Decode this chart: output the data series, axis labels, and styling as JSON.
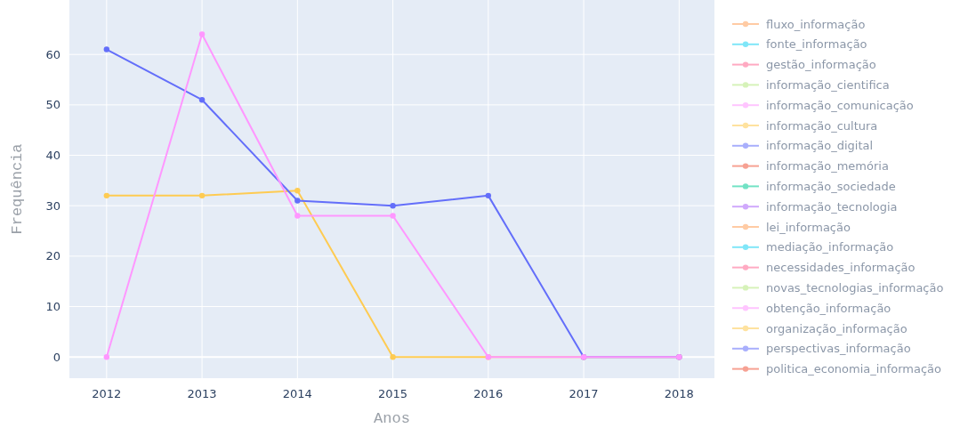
{
  "chart_data": {
    "type": "line",
    "xlabel": "Anos",
    "ylabel": "Frequência",
    "x": [
      2012,
      2013,
      2014,
      2015,
      2016,
      2017,
      2018
    ],
    "xlim": [
      2011.61,
      2018.37
    ],
    "xticks": [
      2012,
      2013,
      2014,
      2015,
      2016,
      2017,
      2018
    ],
    "ylim": [
      -4.2,
      70.8
    ],
    "yticks": [
      0,
      10,
      20,
      30,
      40,
      50,
      60
    ],
    "grid": true,
    "legend": "right",
    "marker": "circle",
    "line_style": "solid",
    "series": [
      {
        "name": "fluxo_informação",
        "color": "#ffa15a",
        "values": [
          null,
          null,
          null,
          null,
          null,
          null,
          null
        ]
      },
      {
        "name": "fonte_informação",
        "color": "#19d3f3",
        "values": [
          null,
          null,
          null,
          null,
          null,
          null,
          null
        ]
      },
      {
        "name": "gestão_informação",
        "color": "#ff6692",
        "values": [
          null,
          null,
          null,
          null,
          null,
          null,
          null
        ]
      },
      {
        "name": "informação_cientifica",
        "color": "#b6e880",
        "values": [
          null,
          null,
          null,
          null,
          null,
          null,
          null
        ]
      },
      {
        "name": "informação_comunicação",
        "color": "#ff97ff",
        "values": [
          null,
          null,
          null,
          null,
          null,
          null,
          null
        ]
      },
      {
        "name": "informação_cultura",
        "color": "#fecb52",
        "values": [
          32,
          32,
          33,
          0,
          0,
          0,
          0
        ]
      },
      {
        "name": "informação_digital",
        "color": "#636efa",
        "values": [
          61,
          51,
          31,
          30,
          32,
          0,
          0
        ]
      },
      {
        "name": "informação_memória",
        "color": "#ef553b",
        "values": [
          null,
          null,
          null,
          null,
          null,
          null,
          null
        ]
      },
      {
        "name": "informação_sociedade",
        "color": "#00cc96",
        "values": [
          null,
          null,
          null,
          null,
          null,
          null,
          null
        ]
      },
      {
        "name": "informação_tecnologia",
        "color": "#ab63fa",
        "values": [
          null,
          null,
          null,
          null,
          null,
          null,
          null
        ]
      },
      {
        "name": "lei_informação",
        "color": "#ffa15a",
        "values": [
          null,
          null,
          null,
          null,
          null,
          null,
          null
        ]
      },
      {
        "name": "mediação_informação",
        "color": "#19d3f3",
        "values": [
          null,
          null,
          null,
          null,
          null,
          null,
          null
        ]
      },
      {
        "name": "necessidades_informação",
        "color": "#ff6692",
        "values": [
          null,
          null,
          null,
          null,
          null,
          null,
          null
        ]
      },
      {
        "name": "novas_tecnologias_informação",
        "color": "#b6e880",
        "values": [
          null,
          null,
          null,
          null,
          null,
          null,
          null
        ]
      },
      {
        "name": "obtenção_informação",
        "color": "#ff97ff",
        "values": [
          0,
          64,
          28,
          28,
          0,
          0,
          0
        ]
      },
      {
        "name": "organização_informação",
        "color": "#fecb52",
        "values": [
          null,
          null,
          null,
          null,
          null,
          null,
          null
        ]
      },
      {
        "name": "perspectivas_informação",
        "color": "#636efa",
        "values": [
          null,
          null,
          null,
          null,
          null,
          null,
          null
        ]
      },
      {
        "name": "politica_economia_informação",
        "color": "#ef553b",
        "values": [
          null,
          null,
          null,
          null,
          null,
          null,
          null
        ]
      }
    ]
  }
}
